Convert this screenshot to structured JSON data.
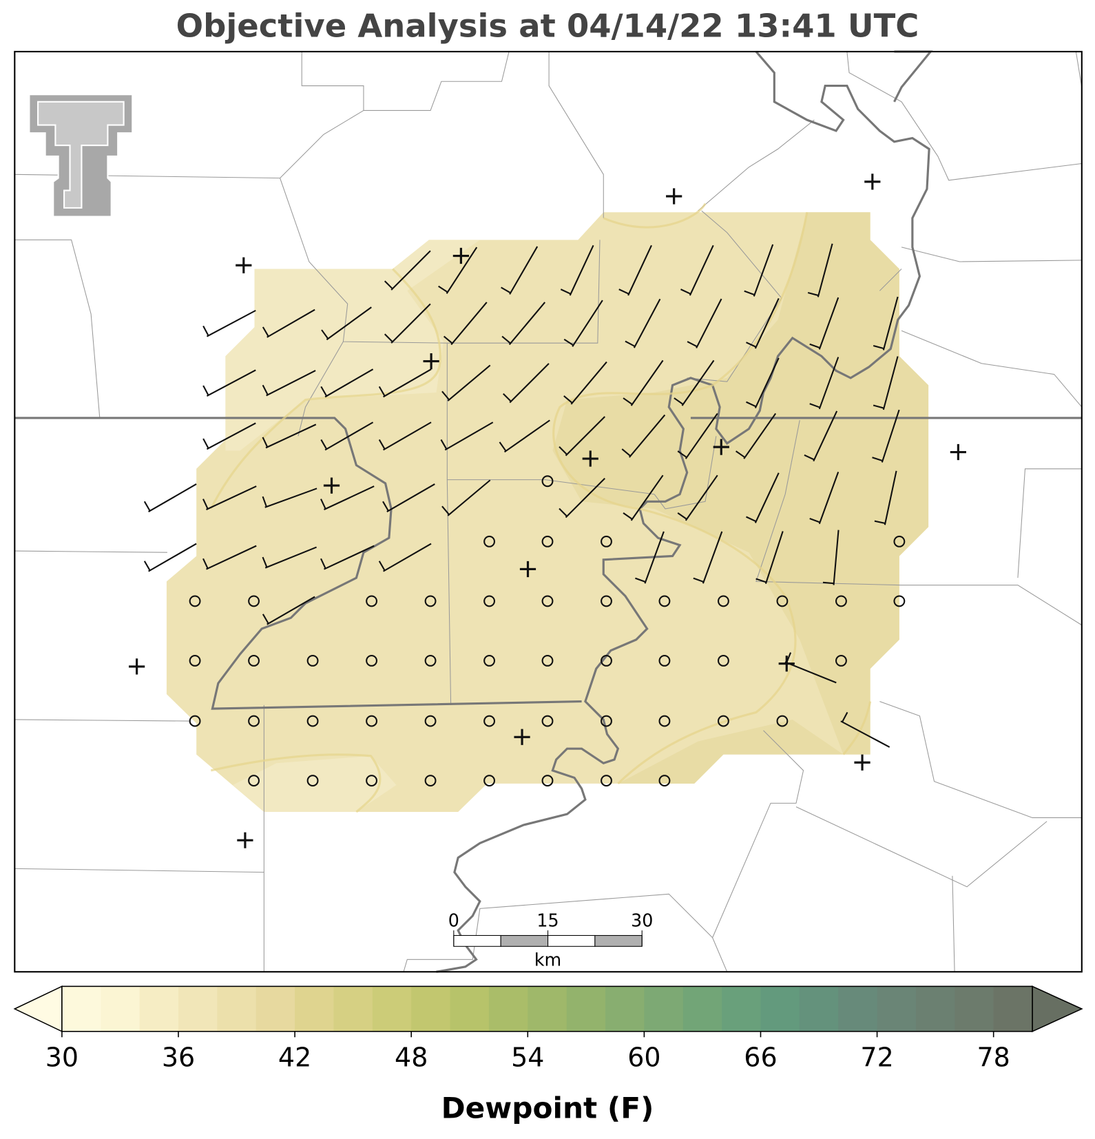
{
  "title": "Objective Analysis at 04/14/22 13:41 UTC",
  "colorbar": {
    "label": "Dewpoint (F)",
    "bins": [
      30,
      32,
      34,
      36,
      38,
      40,
      42,
      44,
      46,
      48,
      50,
      52,
      54,
      56,
      58,
      60,
      62,
      64,
      66,
      68,
      70,
      72,
      74,
      76,
      78,
      80
    ],
    "colors": [
      "#fdf9dc",
      "#fbf5d3",
      "#f6edc4",
      "#f1e6b8",
      "#ece0ab",
      "#e7d99f",
      "#dfd48f",
      "#d6d083",
      "#cccc78",
      "#c2c76f",
      "#b7c36a",
      "#aabd69",
      "#9fb86a",
      "#93b36c",
      "#88ae70",
      "#7da974",
      "#72a577",
      "#69a07b",
      "#639a7d",
      "#64927c",
      "#678a7a",
      "#6a8576",
      "#6b8071",
      "#6c7b6c",
      "#6b7466"
    ],
    "under_color": "#fffbe3",
    "over_color": "#676f62",
    "ticks": [
      30,
      36,
      42,
      48,
      54,
      60,
      66,
      72,
      78
    ]
  },
  "scale_bar": {
    "ticks": [
      0,
      15,
      30
    ],
    "unit": "km"
  }
}
